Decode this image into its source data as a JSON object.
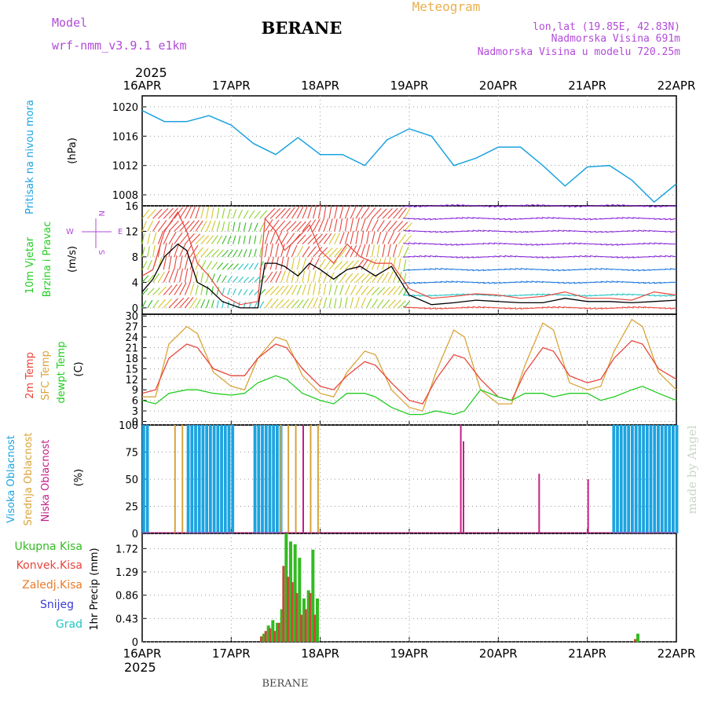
{
  "header": {
    "model_label": "Model",
    "model_name": "wrf-nmm_v3.9.1 e1km",
    "station": "BERANE",
    "product": "Meteogram",
    "lonlat": "lon,lat (19.85E, 42.83N)",
    "elevation": "Nadmorska Visina 691m",
    "elevation_model": "Nadmorska Visina u modelu 720.25m",
    "footer_station": "BERANE",
    "credit": "made by Angel"
  },
  "colors": {
    "pressure": "#1ca3e0",
    "temp2m": "#e8453c",
    "sfc_temp": "#d9a43a",
    "dewpt": "#22cc22",
    "wind_speed": "#000000",
    "gust": "#e8453c",
    "high_cloud": "#1ca3e0",
    "mid_cloud": "#d9a43a",
    "low_cloud": "#c21f8a",
    "total_precip": "#33bb22",
    "conv_precip": "#c84a3a",
    "frz_precip": "#e87b2a",
    "snow": "#3a3ad9",
    "graupel": "#22c4c4",
    "label_purple": "#b24bd9",
    "label_orange": "#e8b050"
  },
  "time_axis": {
    "year": "2025",
    "labels": [
      "16APR",
      "17APR",
      "18APR",
      "19APR",
      "20APR",
      "21APR",
      "22APR"
    ]
  },
  "panels": {
    "pressure": {
      "ylabel_title": "Pritisak na nivou mora",
      "unit": "(hPa)",
      "ticks": [
        "1008",
        "1012",
        "1016",
        "1020"
      ]
    },
    "wind": {
      "ylabel_title1": "10m Vjetar",
      "ylabel_title2": "Brzina i Pravac",
      "unit": "(m/s)",
      "ticks": [
        "0",
        "4",
        "8",
        "12",
        "16"
      ],
      "compass": {
        "n": "N",
        "w": "W",
        "e": "E",
        "s": "S"
      }
    },
    "temp": {
      "ylabel1": "2m Temp",
      "ylabel2": "SFC Temp",
      "ylabel3": "dewpt Temp",
      "unit": "(C)",
      "ticks": [
        "0",
        "3",
        "6",
        "9",
        "12",
        "15",
        "18",
        "21",
        "24",
        "27",
        "30"
      ]
    },
    "cloud": {
      "ylabel1": "Visoka Oblacnost",
      "ylabel2": "Srednja Oblacnost",
      "ylabel3": "Niska Oblacnost",
      "unit": "(%)",
      "ticks": [
        "0",
        "25",
        "50",
        "75",
        "100"
      ]
    },
    "precip": {
      "legend": [
        "Ukupna Kisa",
        "Konvek.Kisa",
        "Zaledj.Kisa",
        "Snijeg",
        "Grad"
      ],
      "ylabel": "1hr Precip (mm)",
      "ticks": [
        "0",
        "0.43",
        "0.86",
        "1.29",
        "1.72"
      ]
    }
  },
  "chart_data": [
    {
      "type": "line",
      "name": "pressure",
      "xlabel": "",
      "ylabel": "Pritisak na nivou mora (hPa)",
      "ylim": [
        1006.5,
        1021.5
      ],
      "x_days": [
        0,
        0.25,
        0.5,
        0.75,
        1.0,
        1.25,
        1.5,
        1.75,
        2.0,
        2.25,
        2.5,
        2.75,
        3.0,
        3.25,
        3.5,
        3.75,
        4.0,
        4.25,
        4.5,
        4.75,
        5.0,
        5.25,
        5.5,
        5.75,
        6.0
      ],
      "values": [
        1019.5,
        1018.0,
        1018.0,
        1018.8,
        1017.5,
        1015.0,
        1013.5,
        1015.8,
        1013.5,
        1013.5,
        1012.0,
        1015.5,
        1017.0,
        1016.0,
        1012.0,
        1013.0,
        1014.5,
        1014.5,
        1012.0,
        1009.2,
        1011.8,
        1012.0,
        1010.0,
        1007.0,
        1009.5
      ],
      "grid": true
    },
    {
      "type": "line",
      "name": "wind",
      "ylabel": "10m Vjetar Brzina i Pravac (m/s)",
      "ylim": [
        -1,
        16
      ],
      "series": [
        {
          "name": "speed",
          "x_days": [
            0,
            0.12,
            0.25,
            0.4,
            0.5,
            0.62,
            0.75,
            0.9,
            1.1,
            1.3,
            1.38,
            1.5,
            1.6,
            1.75,
            1.88,
            2.0,
            2.15,
            2.3,
            2.45,
            2.62,
            2.8,
            3.0,
            3.25,
            3.5,
            3.75,
            4.0,
            4.25,
            4.5,
            4.75,
            5.0,
            5.25,
            5.5,
            5.75,
            6.0
          ],
          "values": [
            2.5,
            4.5,
            8.0,
            10.0,
            9.0,
            4.0,
            3.0,
            1.0,
            0.0,
            0.0,
            7.0,
            7.0,
            6.5,
            5.0,
            7.0,
            6.0,
            4.5,
            6.0,
            6.5,
            5.0,
            6.5,
            2.0,
            0.5,
            0.8,
            1.2,
            1.0,
            0.8,
            0.8,
            1.5,
            1.0,
            1.0,
            0.8,
            1.0,
            1.2
          ]
        },
        {
          "name": "gust",
          "x_days": [
            0,
            0.12,
            0.25,
            0.4,
            0.5,
            0.62,
            0.75,
            0.9,
            1.1,
            1.3,
            1.38,
            1.5,
            1.6,
            1.75,
            1.88,
            2.0,
            2.15,
            2.3,
            2.45,
            2.62,
            2.8,
            3.0,
            3.25,
            3.5,
            3.75,
            4.0,
            4.25,
            4.5,
            4.75,
            5.0,
            5.25,
            5.5,
            5.75,
            6.0
          ],
          "values": [
            5.0,
            6.0,
            12.0,
            15.0,
            12.0,
            7.0,
            5.0,
            2.0,
            0.5,
            1.0,
            14.0,
            12.0,
            9.0,
            11.0,
            13.0,
            9.0,
            7.0,
            10.0,
            8.0,
            7.0,
            7.0,
            3.0,
            1.5,
            1.8,
            2.2,
            2.0,
            1.5,
            1.8,
            2.5,
            1.5,
            1.5,
            1.2,
            2.5,
            2.0
          ]
        }
      ]
    },
    {
      "type": "line",
      "name": "temperature",
      "ylabel": "Temp (C)",
      "ylim": [
        -1,
        30.5
      ],
      "x_days": [
        0,
        0.15,
        0.3,
        0.5,
        0.62,
        0.8,
        1.0,
        1.15,
        1.3,
        1.5,
        1.62,
        1.8,
        2.0,
        2.15,
        2.3,
        2.5,
        2.62,
        2.8,
        3.0,
        3.15,
        3.3,
        3.5,
        3.62,
        3.8,
        4.0,
        4.15,
        4.3,
        4.5,
        4.62,
        4.8,
        5.0,
        5.15,
        5.3,
        5.5,
        5.62,
        5.8,
        6.0
      ],
      "series": [
        {
          "name": "2m Temp",
          "values": [
            8,
            9,
            18,
            22,
            21,
            15,
            13,
            13,
            18,
            22,
            21,
            15,
            10,
            9,
            13,
            17,
            16,
            11,
            6,
            5,
            12,
            19,
            18,
            12,
            7,
            6,
            14,
            21,
            20,
            13,
            11,
            12,
            18,
            23,
            22,
            15,
            12
          ]
        },
        {
          "name": "SFC Temp",
          "values": [
            7,
            7,
            22,
            27,
            25,
            14,
            10,
            9,
            18,
            24,
            23,
            13,
            8,
            7,
            14,
            20,
            19,
            9,
            4,
            3,
            14,
            26,
            24,
            9,
            5,
            5,
            16,
            28,
            26,
            11,
            9,
            10,
            20,
            29,
            27,
            14,
            9
          ]
        },
        {
          "name": "dewpt Temp",
          "values": [
            6,
            5,
            8,
            9,
            9,
            8,
            7.5,
            8,
            11,
            13,
            12,
            8,
            6,
            5,
            8,
            8,
            7,
            4,
            2,
            2,
            3,
            2,
            3,
            9,
            7,
            6,
            8,
            8,
            7,
            8,
            8,
            6,
            7,
            9,
            10,
            8,
            6
          ]
        }
      ]
    },
    {
      "type": "bar",
      "name": "cloud cover",
      "ylabel": "Oblacnost (%)",
      "ylim": [
        0,
        100
      ],
      "series": [
        {
          "name": "Visoka Oblacnost",
          "spans_days": [
            [
              0.0,
              0.06
            ],
            [
              0.5,
              1.0
            ],
            [
              1.25,
              1.55
            ],
            [
              5.28,
              6.0
            ]
          ],
          "value": 100
        },
        {
          "name": "Srednja Oblacnost",
          "spans_days": [
            [
              0.36,
              0.48
            ],
            [
              1.55,
              2.05
            ]
          ],
          "value": 100
        },
        {
          "name": "Niska Oblacnost",
          "spikes": [
            [
              1.8,
              100
            ],
            [
              3.57,
              100
            ],
            [
              3.6,
              85
            ],
            [
              4.45,
              55
            ],
            [
              5.0,
              50
            ]
          ],
          "value": 100
        }
      ]
    },
    {
      "type": "bar",
      "name": "precipitation",
      "ylabel": "1hr Precip (mm)",
      "ylim": [
        0,
        2.0
      ],
      "series": [
        {
          "name": "Ukupna Kisa",
          "x_days": [
            1.35,
            1.4,
            1.45,
            1.5,
            1.55,
            1.6,
            1.65,
            1.7,
            1.75,
            1.8,
            1.85,
            1.9,
            1.95,
            5.55
          ],
          "values": [
            0.15,
            0.3,
            0.4,
            0.35,
            0.6,
            2.0,
            1.85,
            1.8,
            1.55,
            0.8,
            0.95,
            1.7,
            0.8,
            0.15
          ]
        },
        {
          "name": "Konvek.Kisa",
          "x_days": [
            1.35,
            1.4,
            1.45,
            1.5,
            1.55,
            1.6,
            1.65,
            1.7,
            1.75,
            1.8,
            1.85,
            1.9,
            1.95,
            5.55
          ],
          "values": [
            0.1,
            0.2,
            0.25,
            0.2,
            0.35,
            1.4,
            1.2,
            1.1,
            0.9,
            0.5,
            0.6,
            0.9,
            0.5,
            0.05
          ]
        }
      ]
    }
  ]
}
